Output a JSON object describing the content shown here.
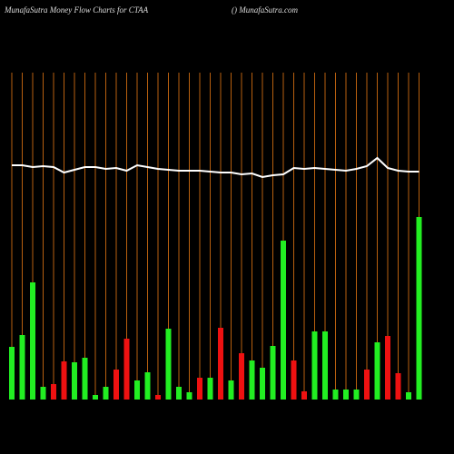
{
  "chart_data": {
    "type": "bar",
    "title": "MunafaSutra  Money Flow  Charts for CTAA",
    "subtitle": "() MunafaSutra.com",
    "categories": [
      null,
      null,
      null,
      null,
      null,
      null,
      null,
      null,
      null,
      null,
      null,
      null,
      null,
      null,
      null,
      null,
      null,
      null,
      null,
      null,
      null,
      null,
      null,
      null,
      null,
      null,
      null,
      null,
      null,
      null,
      null,
      null,
      null,
      null,
      null,
      null,
      null,
      null,
      null,
      null
    ],
    "bars": {
      "values": [
        58,
        71,
        129,
        14,
        17,
        42,
        41,
        46,
        5,
        14,
        33,
        67,
        21,
        30,
        5,
        78,
        14,
        8,
        24,
        24,
        79,
        21,
        51,
        43,
        35,
        59,
        175,
        43,
        9,
        75,
        75,
        11,
        11,
        11,
        33,
        63,
        70,
        29,
        8,
        201
      ],
      "colors": [
        "#22ee22",
        "#22ee22",
        "#22ee22",
        "#22ee22",
        "#ee1111",
        "#ee1111",
        "#22ee22",
        "#22ee22",
        "#22ee22",
        "#22ee22",
        "#ee1111",
        "#ee1111",
        "#22ee22",
        "#22ee22",
        "#ee1111",
        "#22ee22",
        "#22ee22",
        "#22ee22",
        "#ee1111",
        "#22ee22",
        "#ee1111",
        "#22ee22",
        "#ee1111",
        "#22ee22",
        "#22ee22",
        "#22ee22",
        "#22ee22",
        "#ee1111",
        "#ee1111",
        "#22ee22",
        "#22ee22",
        "#22ee22",
        "#22ee22",
        "#22ee22",
        "#ee1111",
        "#22ee22",
        "#ee1111",
        "#ee1111",
        "#22ee22",
        "#22ee22"
      ]
    },
    "line": {
      "color": "#ffffff",
      "values": [
        258,
        258,
        256,
        257,
        256,
        250,
        253,
        256,
        256,
        254,
        255,
        252,
        258,
        256,
        254,
        253,
        252,
        252,
        252,
        251,
        250,
        250,
        248,
        249,
        245,
        247,
        248,
        255,
        254,
        255,
        254,
        253,
        252,
        254,
        257,
        266,
        255,
        252,
        251,
        251
      ]
    },
    "ylim": [
      0,
      360
    ],
    "grid": true,
    "grid_color": "#b8600f"
  }
}
